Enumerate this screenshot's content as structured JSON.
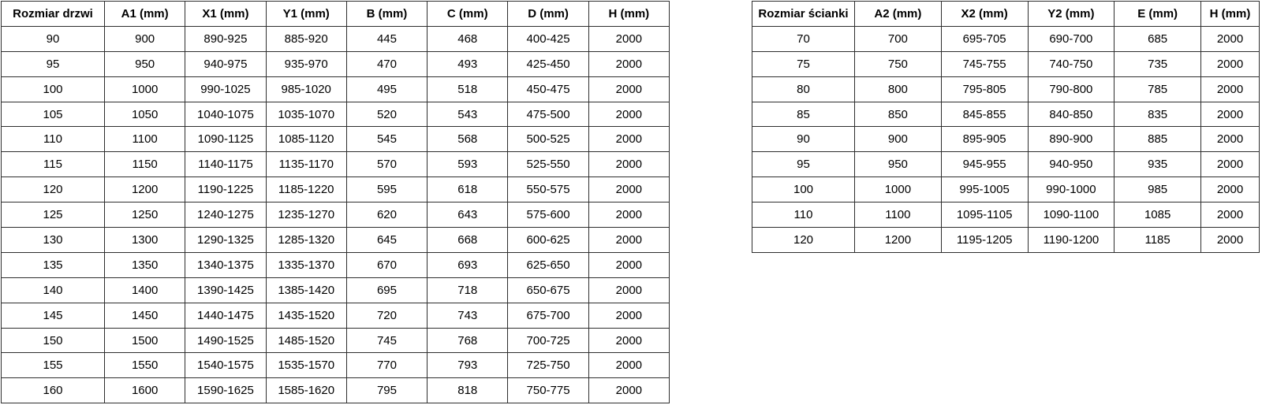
{
  "page": {
    "background": "#ffffff",
    "border_color": "#2e2e2e",
    "text_color": "#000000"
  },
  "tables": [
    {
      "title": "door-sizes",
      "headers": [
        "Rozmiar drzwi",
        "A1 (mm)",
        "X1 (mm)",
        "Y1 (mm)",
        "B (mm)",
        "C (mm)",
        "D (mm)",
        "H (mm)"
      ],
      "rows": [
        [
          "90",
          "900",
          "890-925",
          "885-920",
          "445",
          "468",
          "400-425",
          "2000"
        ],
        [
          "95",
          "950",
          "940-975",
          "935-970",
          "470",
          "493",
          "425-450",
          "2000"
        ],
        [
          "100",
          "1000",
          "990-1025",
          "985-1020",
          "495",
          "518",
          "450-475",
          "2000"
        ],
        [
          "105",
          "1050",
          "1040-1075",
          "1035-1070",
          "520",
          "543",
          "475-500",
          "2000"
        ],
        [
          "110",
          "1100",
          "1090-1125",
          "1085-1120",
          "545",
          "568",
          "500-525",
          "2000"
        ],
        [
          "115",
          "1150",
          "1140-1175",
          "1135-1170",
          "570",
          "593",
          "525-550",
          "2000"
        ],
        [
          "120",
          "1200",
          "1190-1225",
          "1185-1220",
          "595",
          "618",
          "550-575",
          "2000"
        ],
        [
          "125",
          "1250",
          "1240-1275",
          "1235-1270",
          "620",
          "643",
          "575-600",
          "2000"
        ],
        [
          "130",
          "1300",
          "1290-1325",
          "1285-1320",
          "645",
          "668",
          "600-625",
          "2000"
        ],
        [
          "135",
          "1350",
          "1340-1375",
          "1335-1370",
          "670",
          "693",
          "625-650",
          "2000"
        ],
        [
          "140",
          "1400",
          "1390-1425",
          "1385-1420",
          "695",
          "718",
          "650-675",
          "2000"
        ],
        [
          "145",
          "1450",
          "1440-1475",
          "1435-1520",
          "720",
          "743",
          "675-700",
          "2000"
        ],
        [
          "150",
          "1500",
          "1490-1525",
          "1485-1520",
          "745",
          "768",
          "700-725",
          "2000"
        ],
        [
          "155",
          "1550",
          "1540-1575",
          "1535-1570",
          "770",
          "793",
          "725-750",
          "2000"
        ],
        [
          "160",
          "1600",
          "1590-1625",
          "1585-1620",
          "795",
          "818",
          "750-775",
          "2000"
        ]
      ]
    },
    {
      "title": "wall-panel-sizes",
      "headers": [
        "Rozmiar ścianki",
        "A2 (mm)",
        "X2 (mm)",
        "Y2 (mm)",
        "E (mm)",
        "H (mm)"
      ],
      "rows": [
        [
          "70",
          "700",
          "695-705",
          "690-700",
          "685",
          "2000"
        ],
        [
          "75",
          "750",
          "745-755",
          "740-750",
          "735",
          "2000"
        ],
        [
          "80",
          "800",
          "795-805",
          "790-800",
          "785",
          "2000"
        ],
        [
          "85",
          "850",
          "845-855",
          "840-850",
          "835",
          "2000"
        ],
        [
          "90",
          "900",
          "895-905",
          "890-900",
          "885",
          "2000"
        ],
        [
          "95",
          "950",
          "945-955",
          "940-950",
          "935",
          "2000"
        ],
        [
          "100",
          "1000",
          "995-1005",
          "990-1000",
          "985",
          "2000"
        ],
        [
          "110",
          "1100",
          "1095-1105",
          "1090-1100",
          "1085",
          "2000"
        ],
        [
          "120",
          "1200",
          "1195-1205",
          "1190-1200",
          "1185",
          "2000"
        ]
      ]
    }
  ]
}
